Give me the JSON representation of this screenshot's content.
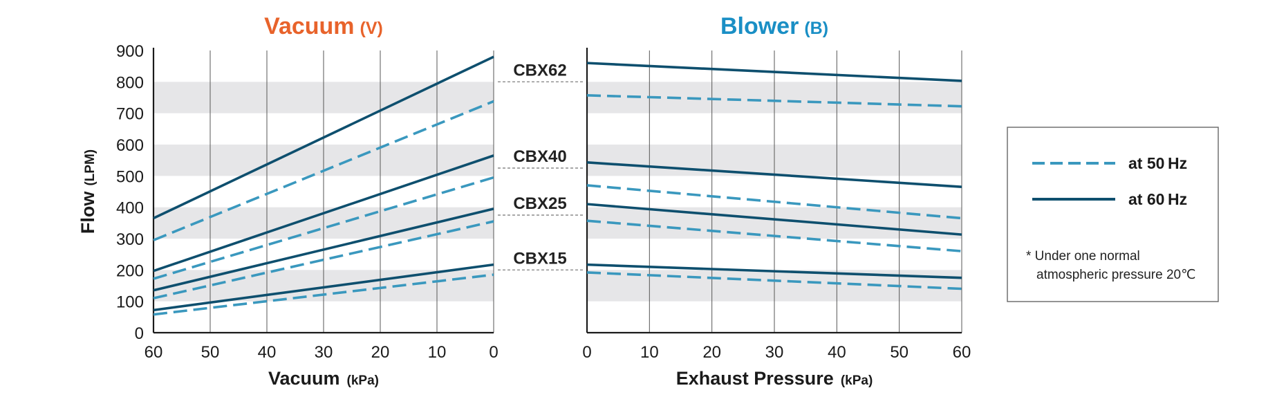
{
  "chart_data": [
    {
      "type": "line",
      "title": "Vacuum",
      "title_suffix": "(V)",
      "title_color": "#E8632B",
      "xlabel": "Vacuum",
      "xlabel_unit": "(kPa)",
      "ylabel": "Flow",
      "ylabel_unit": "(LPM)",
      "xlim": [
        60,
        0
      ],
      "ylim": [
        0,
        900
      ],
      "x_ticks": [
        60,
        50,
        40,
        30,
        20,
        10,
        0
      ],
      "y_ticks": [
        0,
        100,
        200,
        300,
        400,
        500,
        600,
        700,
        800,
        900
      ],
      "bands": [
        [
          100,
          200
        ],
        [
          300,
          400
        ],
        [
          500,
          600
        ],
        [
          700,
          800
        ]
      ],
      "series": [
        {
          "model": "CBX62",
          "freq": "60Hz",
          "x": [
            60,
            0
          ],
          "y": [
            365,
            880
          ]
        },
        {
          "model": "CBX62",
          "freq": "50Hz",
          "x": [
            60,
            0
          ],
          "y": [
            295,
            738
          ]
        },
        {
          "model": "CBX40",
          "freq": "60Hz",
          "x": [
            60,
            0
          ],
          "y": [
            197,
            565
          ]
        },
        {
          "model": "CBX40",
          "freq": "50Hz",
          "x": [
            60,
            0
          ],
          "y": [
            172,
            495
          ]
        },
        {
          "model": "CBX25",
          "freq": "60Hz",
          "x": [
            60,
            0
          ],
          "y": [
            135,
            395
          ]
        },
        {
          "model": "CBX25",
          "freq": "50Hz",
          "x": [
            60,
            0
          ],
          "y": [
            110,
            355
          ]
        },
        {
          "model": "CBX15",
          "freq": "60Hz",
          "x": [
            60,
            0
          ],
          "y": [
            72,
            217
          ]
        },
        {
          "model": "CBX15",
          "freq": "50Hz",
          "x": [
            60,
            0
          ],
          "y": [
            58,
            185
          ]
        }
      ]
    },
    {
      "type": "line",
      "title": "Blower",
      "title_suffix": "(B)",
      "title_color": "#1A8FC5",
      "xlabel": "Exhaust Pressure",
      "xlabel_unit": "(kPa)",
      "xlim": [
        0,
        60
      ],
      "ylim": [
        0,
        900
      ],
      "x_ticks": [
        0,
        10,
        20,
        30,
        40,
        50,
        60
      ],
      "bands": [
        [
          100,
          200
        ],
        [
          300,
          400
        ],
        [
          500,
          600
        ],
        [
          700,
          800
        ]
      ],
      "series": [
        {
          "model": "CBX62",
          "freq": "60Hz",
          "x": [
            0,
            60
          ],
          "y": [
            860,
            803
          ]
        },
        {
          "model": "CBX62",
          "freq": "50Hz",
          "x": [
            0,
            60
          ],
          "y": [
            757,
            722
          ]
        },
        {
          "model": "CBX40",
          "freq": "60Hz",
          "x": [
            0,
            60
          ],
          "y": [
            543,
            465
          ]
        },
        {
          "model": "CBX40",
          "freq": "50Hz",
          "x": [
            0,
            60
          ],
          "y": [
            470,
            365
          ]
        },
        {
          "model": "CBX25",
          "freq": "60Hz",
          "x": [
            0,
            60
          ],
          "y": [
            410,
            313
          ]
        },
        {
          "model": "CBX25",
          "freq": "50Hz",
          "x": [
            0,
            60
          ],
          "y": [
            357,
            260
          ]
        },
        {
          "model": "CBX15",
          "freq": "60Hz",
          "x": [
            0,
            60
          ],
          "y": [
            217,
            175
          ]
        },
        {
          "model": "CBX15",
          "freq": "50Hz",
          "x": [
            0,
            60
          ],
          "y": [
            192,
            140
          ]
        }
      ]
    }
  ],
  "models": [
    {
      "name": "CBX62",
      "flow": 800
    },
    {
      "name": "CBX40",
      "flow": 525
    },
    {
      "name": "CBX25",
      "flow": 375
    },
    {
      "name": "CBX15",
      "flow": 200
    }
  ],
  "legend": {
    "items": [
      {
        "label": "at 50 Hz",
        "freq": "50Hz",
        "style": "dashed"
      },
      {
        "label": "at 60 Hz",
        "freq": "60Hz",
        "style": "solid"
      }
    ],
    "note_line1": "* Under one normal",
    "note_line2": "atmospheric pressure 20℃"
  },
  "colors": {
    "hz60": "#0E4F6E",
    "hz50": "#3A98BE",
    "band": "#E6E6E8",
    "grid": "#555555",
    "axis": "#1A1A1A",
    "leader": "#8A8A8A"
  }
}
